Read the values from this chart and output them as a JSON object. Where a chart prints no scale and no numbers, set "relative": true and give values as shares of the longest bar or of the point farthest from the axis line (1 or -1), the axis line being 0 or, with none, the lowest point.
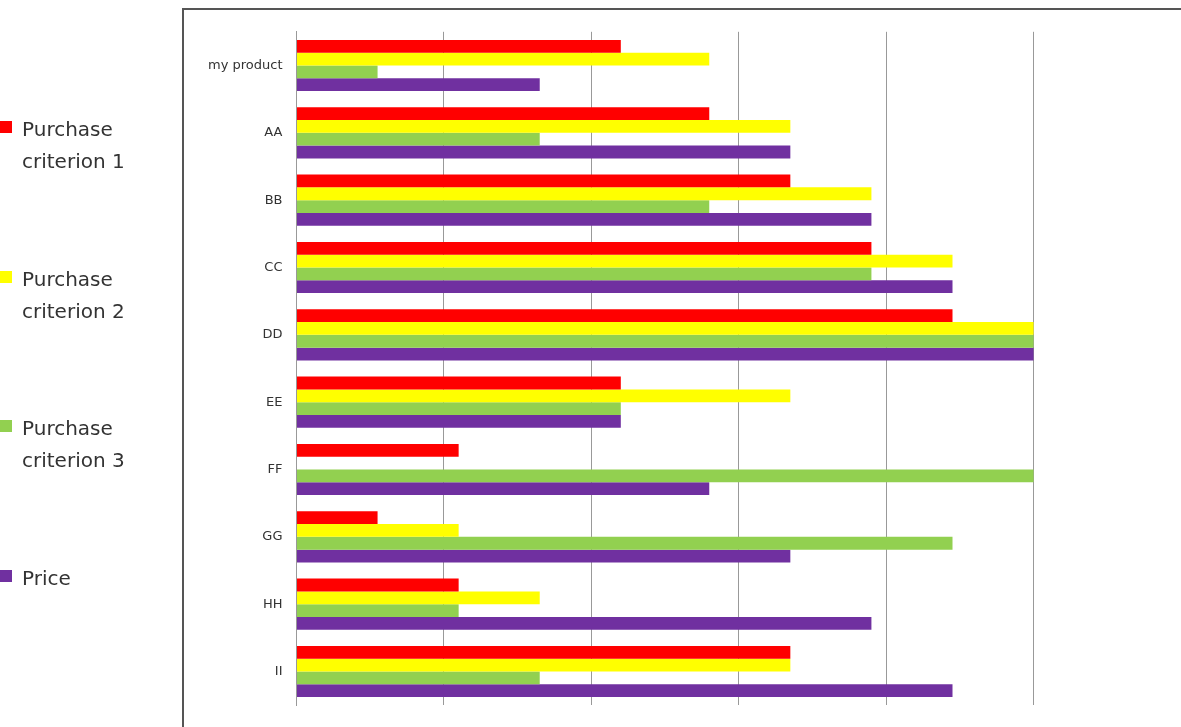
{
  "chart_data": {
    "type": "bar",
    "orientation": "horizontal",
    "relative": true,
    "grid": "x",
    "legend": "left",
    "categories": [
      "my product",
      "AA",
      "BB",
      "CC",
      "DD",
      "EE",
      "FF",
      "GG",
      "HH",
      "II"
    ],
    "series": [
      {
        "name": "Purchase criterion 1",
        "color": "#ff0000",
        "values": [
          0.44,
          0.56,
          0.67,
          0.78,
          0.89,
          0.44,
          0.22,
          0.11,
          0.22,
          0.67
        ]
      },
      {
        "name": "Purchase criterion 2",
        "color": "#ffff00",
        "values": [
          0.56,
          0.67,
          0.78,
          0.89,
          1,
          0.67,
          null,
          0.22,
          0.33,
          0.67
        ]
      },
      {
        "name": "Purchase criterion 3",
        "color": "#92d050",
        "values": [
          0.11,
          0.33,
          0.56,
          0.78,
          1,
          0.44,
          1,
          0.89,
          0.22,
          0.33
        ]
      },
      {
        "name": "Price",
        "color": "#7030a0",
        "values": [
          0.33,
          0.67,
          0.78,
          0.89,
          1,
          0.44,
          0.56,
          0.67,
          0.78,
          0.89
        ]
      }
    ]
  }
}
